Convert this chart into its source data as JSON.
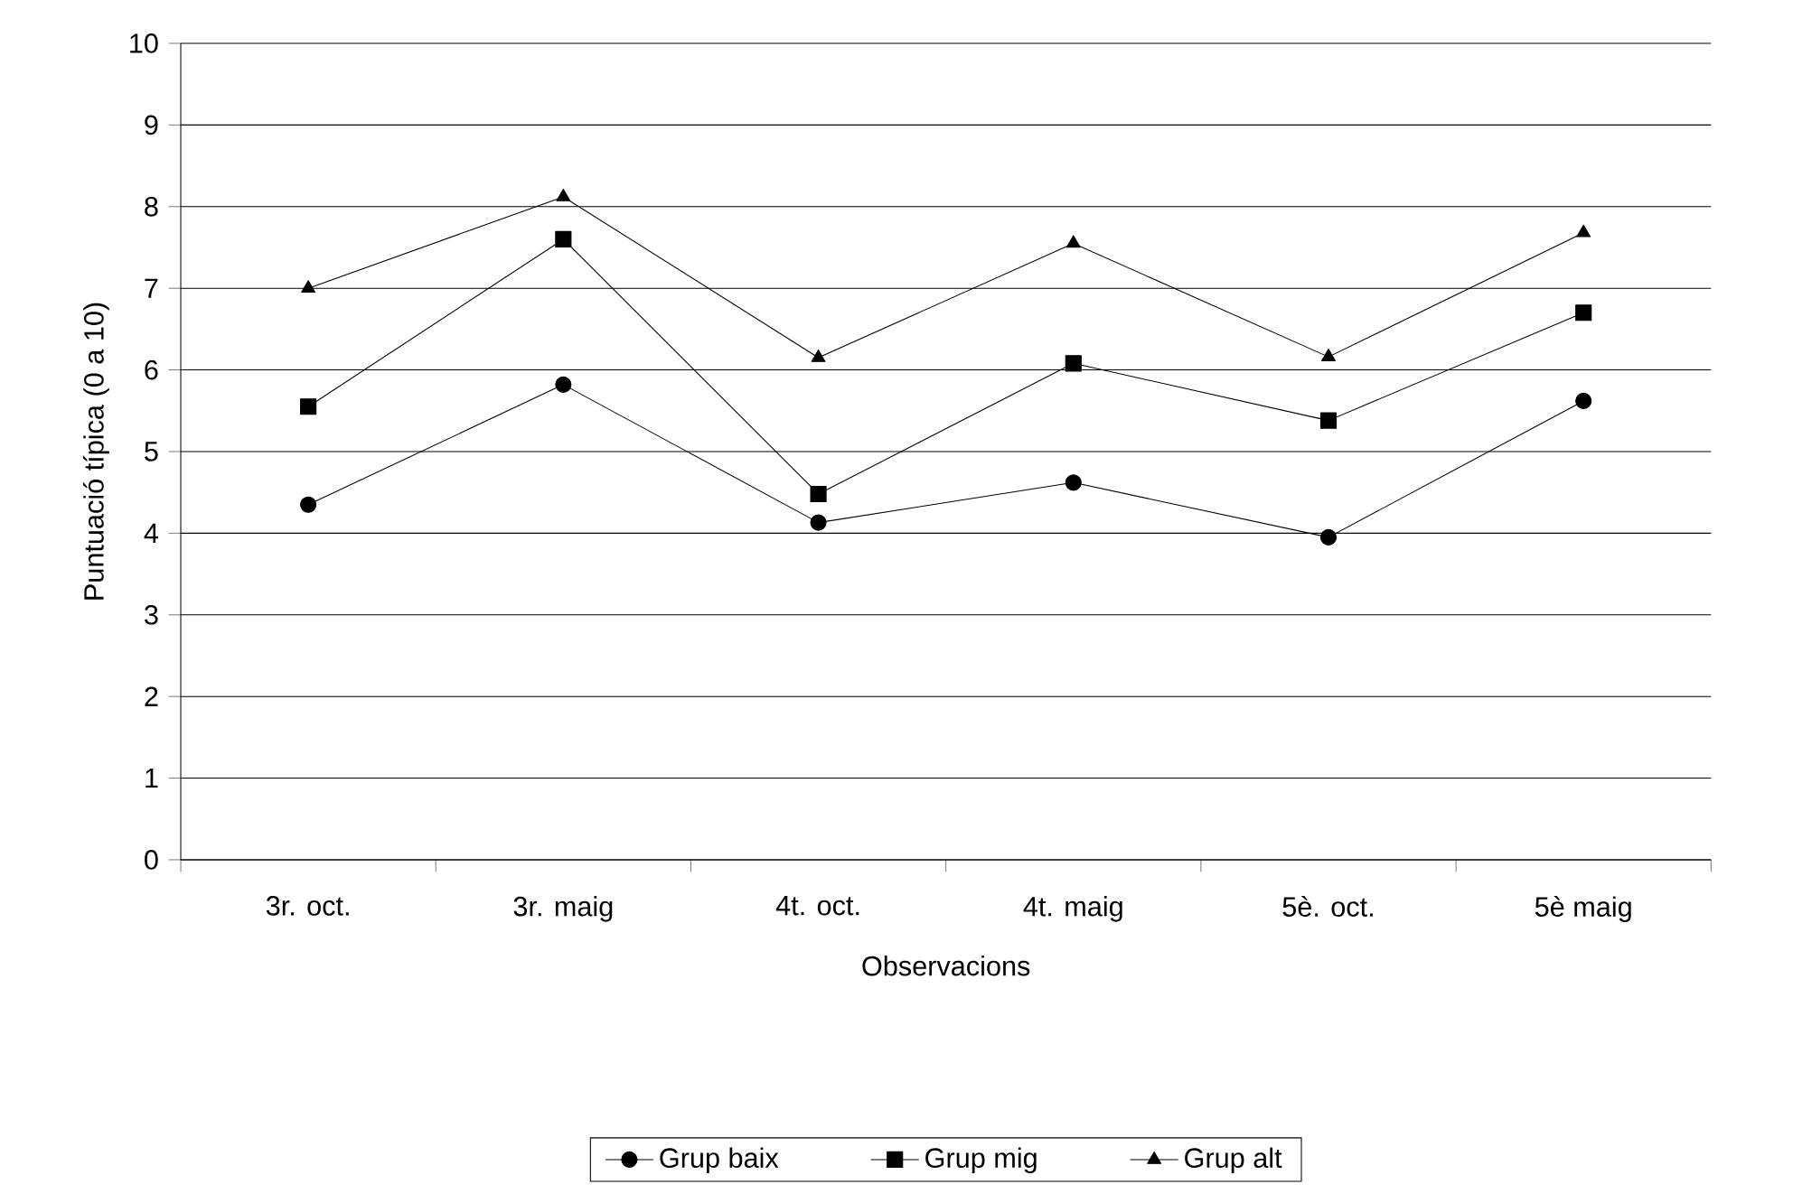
{
  "chart_data": {
    "type": "line",
    "xlabel": "Observacions",
    "ylabel": "Puntuació típica (0 a 10)",
    "categories": [
      "3r. oct.",
      "3r. maig",
      "4t. oct.",
      "4t. maig",
      "5è. oct.",
      "5è maig"
    ],
    "series": [
      {
        "name": "Grup baix",
        "color": "#000000",
        "marker": "circle",
        "values": [
          4.35,
          5.82,
          4.13,
          4.62,
          3.95,
          5.62
        ]
      },
      {
        "name": "Grup mig",
        "color": "#000000",
        "marker": "square",
        "values": [
          5.55,
          7.6,
          4.48,
          6.08,
          5.38,
          6.7
        ]
      },
      {
        "name": "Grup alt",
        "color": "#000000",
        "marker": "triangle",
        "values": [
          7.0,
          8.12,
          6.15,
          7.55,
          6.16,
          7.68
        ]
      }
    ],
    "ylim": [
      0,
      10
    ],
    "yticks": [
      0,
      1,
      2,
      3,
      4,
      5,
      6,
      7,
      8,
      9,
      10
    ],
    "grid": "y",
    "legend": "bottom",
    "line_style": "solid"
  }
}
